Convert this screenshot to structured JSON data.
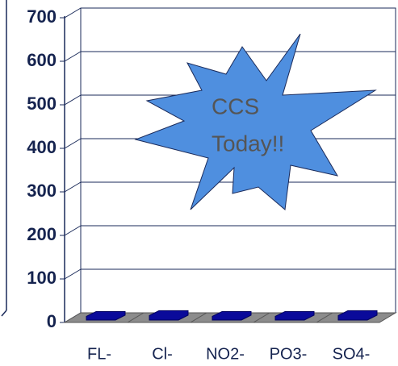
{
  "chart_data": {
    "type": "bar3d",
    "categories": [
      "FL-",
      "Cl-",
      "NO2-",
      "PO3-",
      "SO4-"
    ],
    "values": [
      1,
      3,
      1,
      1,
      3
    ],
    "color": "#0a0a9a",
    "ylim": [
      0,
      700
    ],
    "yticks": [
      0,
      100,
      200,
      300,
      400,
      500,
      600,
      700
    ],
    "grid": true,
    "annotations": [
      "CCS",
      "Today!!"
    ]
  }
}
